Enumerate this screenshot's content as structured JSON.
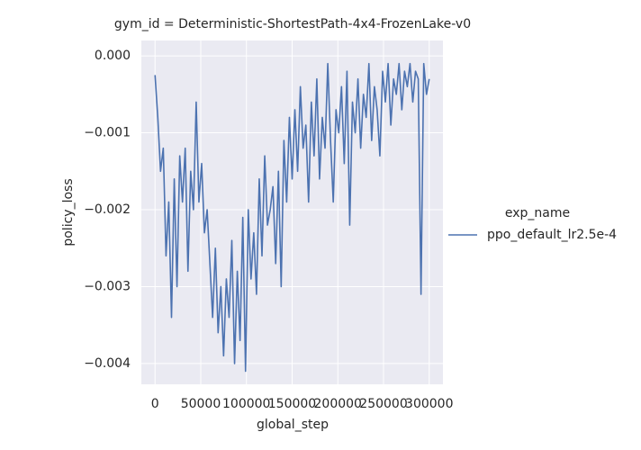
{
  "chart_data": {
    "type": "line",
    "title": "gym_id = Deterministic-ShortestPath-4x4-FrozenLake-v0",
    "x_label": "global_step",
    "y_label": "policy_loss",
    "legend_title": "exp_name",
    "xlim": [
      -15000,
      315000
    ],
    "ylim": [
      -0.00427,
      0.0002
    ],
    "xticks": [
      0,
      50000,
      100000,
      150000,
      200000,
      250000,
      300000
    ],
    "yticks": [
      {
        "value": 0,
        "label": "0.000"
      },
      {
        "value": -0.001,
        "label": "−0.001"
      },
      {
        "value": -0.002,
        "label": "−0.002"
      },
      {
        "value": -0.003,
        "label": "−0.003"
      },
      {
        "value": -0.004,
        "label": "−0.004"
      }
    ],
    "grid": true,
    "x": [
      0,
      3000,
      6000,
      9000,
      12000,
      15000,
      18000,
      21000,
      24000,
      27000,
      30000,
      33000,
      36000,
      39000,
      42000,
      45000,
      48000,
      51000,
      54000,
      57000,
      60000,
      63000,
      66000,
      69000,
      72000,
      75000,
      78000,
      81000,
      84000,
      87000,
      90000,
      93000,
      96000,
      99000,
      102000,
      105000,
      108000,
      111000,
      114000,
      117000,
      120000,
      123000,
      126000,
      129000,
      132000,
      135000,
      138000,
      141000,
      144000,
      147000,
      150000,
      153000,
      156000,
      159000,
      162000,
      165000,
      168000,
      171000,
      174000,
      177000,
      180000,
      183000,
      186000,
      189000,
      192000,
      195000,
      198000,
      201000,
      204000,
      207000,
      210000,
      213000,
      216000,
      219000,
      222000,
      225000,
      228000,
      231000,
      234000,
      237000,
      240000,
      243000,
      246000,
      249000,
      252000,
      255000,
      258000,
      261000,
      264000,
      267000,
      270000,
      273000,
      276000,
      279000,
      282000,
      285000,
      288000,
      291000,
      294000,
      297000,
      300000
    ],
    "series": [
      {
        "name": "ppo_default_lr2.5e-4",
        "color": "#4c72b0",
        "values": [
          -0.00025,
          -0.0008,
          -0.0015,
          -0.0012,
          -0.0026,
          -0.0019,
          -0.0034,
          -0.0016,
          -0.003,
          -0.0013,
          -0.0019,
          -0.0012,
          -0.0028,
          -0.0015,
          -0.002,
          -0.0006,
          -0.0019,
          -0.0014,
          -0.0023,
          -0.002,
          -0.0027,
          -0.0034,
          -0.0025,
          -0.0036,
          -0.003,
          -0.0039,
          -0.0029,
          -0.0034,
          -0.0024,
          -0.004,
          -0.0028,
          -0.0037,
          -0.0021,
          -0.0041,
          -0.002,
          -0.0029,
          -0.0023,
          -0.0031,
          -0.0016,
          -0.0026,
          -0.0013,
          -0.0022,
          -0.002,
          -0.0017,
          -0.0027,
          -0.0015,
          -0.003,
          -0.0011,
          -0.0019,
          -0.0008,
          -0.0016,
          -0.0007,
          -0.0015,
          -0.0004,
          -0.0012,
          -0.0009,
          -0.0019,
          -0.0006,
          -0.0013,
          -0.0003,
          -0.0016,
          -0.0008,
          -0.0012,
          -0.0001,
          -0.0011,
          -0.0019,
          -0.0007,
          -0.001,
          -0.0004,
          -0.0014,
          -0.0002,
          -0.0022,
          -0.0006,
          -0.001,
          -0.0003,
          -0.0012,
          -0.0005,
          -0.0008,
          -0.0001,
          -0.0011,
          -0.0004,
          -0.0007,
          -0.0013,
          -0.0002,
          -0.0006,
          -0.0001,
          -0.0009,
          -0.0003,
          -0.0005,
          -0.0001,
          -0.0007,
          -0.0002,
          -0.0004,
          -0.0001,
          -0.0006,
          -0.0002,
          -0.0003,
          -0.0031,
          -0.0001,
          -0.0005,
          -0.0003
        ]
      }
    ]
  }
}
